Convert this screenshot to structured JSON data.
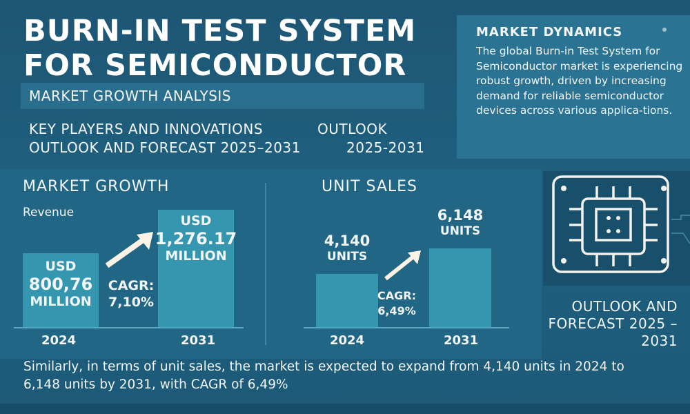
{
  "header": {
    "title_line1": "BURN-IN TEST SYSTEM",
    "title_line2": "FOR SEMICONDUCTOR",
    "subtitle": "MARKET GROWTH ANALYSIS",
    "line1_left": "KEY PLAYERS AND  INNOVATIONS",
    "line1_right": "OUTLOOK",
    "line2_left": "OUTLOOK AND FORECAST 2025–2031",
    "line2_right": "2025-2031"
  },
  "dynamics": {
    "title": "MARKET DYNAMICS",
    "text": "The global Burn-in Test System for Semiconductor market is experiencing robust growth, driven by increasing demand for reliable semiconductor devices across various applica-tions."
  },
  "outlook": {
    "line1": "OUTLOOK AND",
    "line2": "FORECAST 2025 –",
    "line3": "2031"
  },
  "footer": {
    "text": "Similarly, in terms of unit sales, the market is expected to expand from 4,140 units in 2024 to 6,148 units by 2031, with CAGR of 6,49%"
  },
  "chart_data": [
    {
      "type": "bar",
      "title": "MARKET GROWTH",
      "ylabel": "Revenue",
      "categories": [
        "2024",
        "2031"
      ],
      "values": [
        800.76,
        1276.17
      ],
      "unit": "USD Million",
      "labels": [
        [
          "USD",
          "800,76",
          "MILLION"
        ],
        [
          "USD",
          "1,276.17",
          "MILLION"
        ]
      ],
      "annotation": [
        "CAGR:",
        "7,10%"
      ]
    },
    {
      "type": "bar",
      "title": "UNIT SALES",
      "categories": [
        "2024",
        "2031"
      ],
      "values": [
        4140,
        6148
      ],
      "unit": "Units",
      "labels": [
        [
          "4,140",
          "UNITS"
        ],
        [
          "6,148",
          "UNITS"
        ]
      ],
      "annotation": [
        "CAGR:",
        "6,49%"
      ]
    }
  ],
  "colors": {
    "background": "#1d5674",
    "bar": "#3596b0",
    "panel": "#2b7393"
  }
}
